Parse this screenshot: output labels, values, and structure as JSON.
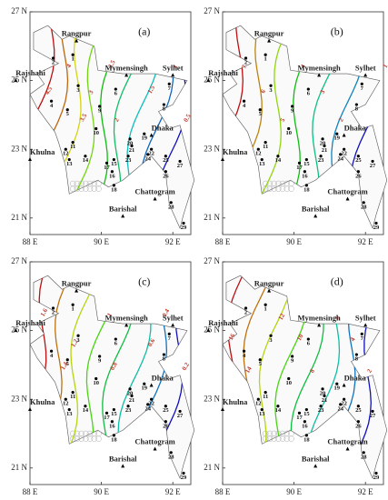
{
  "panels": [
    {
      "label": "(a)",
      "contours": [
        4.5,
        4,
        3.5,
        3,
        2.5,
        2,
        1.5,
        1,
        0.5
      ]
    },
    {
      "label": "(b)",
      "contours": [
        7,
        6,
        5,
        4,
        3,
        2,
        1
      ]
    },
    {
      "label": "(c)",
      "contours": [
        1.6,
        1.4,
        1.2,
        1,
        0.8,
        0.6,
        0.4,
        0.2
      ]
    },
    {
      "label": "(d)",
      "contours": [
        16,
        14,
        12,
        10,
        8,
        6,
        4,
        2
      ]
    }
  ],
  "lat_ticks": [
    {
      "value": 27,
      "label": "27 N"
    },
    {
      "value": 25,
      "label": "25 N"
    },
    {
      "value": 23,
      "label": "23 N"
    },
    {
      "value": 21,
      "label": "21 N"
    }
  ],
  "lon_ticks": [
    {
      "value": 88,
      "label": "88 E"
    },
    {
      "value": 90,
      "label": "90 E"
    },
    {
      "value": 92,
      "label": "92 E"
    }
  ],
  "regions": [
    "Rangpur",
    "Rajshahi",
    "Mymensingh",
    "Sylhet",
    "Dhaka",
    "Khulna",
    "Chattogram",
    "Barishal"
  ],
  "stations": [
    "1",
    "2",
    "3",
    "4",
    "5",
    "6",
    "7",
    "8",
    "9",
    "10",
    "11",
    "12",
    "13",
    "14",
    "15",
    "16",
    "17",
    "18",
    "19",
    "20",
    "21",
    "22",
    "23",
    "24",
    "25",
    "26",
    "27",
    "28",
    "29"
  ]
}
